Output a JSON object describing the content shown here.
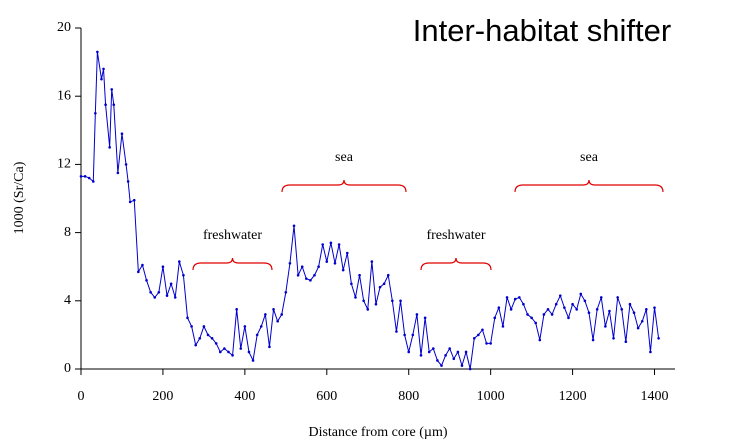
{
  "chart_data": {
    "type": "line",
    "title": "Inter-habitat shifter",
    "xlabel": "Distance from core (µm)",
    "ylabel": "1000 (Sr/Ca)",
    "xlim": [
      0,
      1450
    ],
    "xticks": [
      0,
      200,
      400,
      600,
      800,
      1000,
      1200,
      1400
    ],
    "ylim": [
      0,
      20
    ],
    "yticks": [
      0,
      4,
      8,
      12,
      16,
      20
    ],
    "annotations": [
      "freshwater",
      "sea",
      "freshwater",
      "sea"
    ],
    "series": [
      {
        "color": "#0000cc",
        "x": [
          0,
          10,
          20,
          30,
          35,
          40,
          50,
          55,
          60,
          70,
          75,
          80,
          90,
          100,
          110,
          115,
          120,
          130,
          140,
          150,
          160,
          170,
          180,
          190,
          200,
          210,
          220,
          230,
          240,
          250,
          260,
          270,
          280,
          290,
          300,
          310,
          320,
          330,
          340,
          350,
          360,
          370,
          380,
          390,
          400,
          410,
          420,
          430,
          440,
          450,
          460,
          470,
          480,
          490,
          500,
          510,
          520,
          530,
          540,
          550,
          560,
          570,
          580,
          590,
          600,
          610,
          620,
          630,
          640,
          650,
          660,
          670,
          680,
          690,
          700,
          710,
          720,
          730,
          740,
          750,
          760,
          770,
          780,
          790,
          800,
          810,
          820,
          830,
          840,
          850,
          860,
          870,
          880,
          890,
          900,
          910,
          920,
          930,
          940,
          950,
          960,
          970,
          980,
          990,
          1000,
          1010,
          1020,
          1030,
          1040,
          1050,
          1060,
          1070,
          1080,
          1090,
          1100,
          1110,
          1120,
          1130,
          1140,
          1150,
          1160,
          1170,
          1180,
          1190,
          1200,
          1210,
          1220,
          1230,
          1240,
          1250,
          1260,
          1270,
          1280,
          1290,
          1300,
          1310,
          1320,
          1330,
          1340,
          1350,
          1360,
          1370,
          1380,
          1390,
          1400,
          1410
        ],
        "values": [
          11.3,
          11.3,
          11.2,
          11.0,
          15,
          18.6,
          17,
          17.6,
          15.5,
          13,
          16.4,
          15.5,
          11.5,
          13.8,
          12,
          11,
          9.8,
          9.9,
          5.7,
          6.1,
          5.2,
          4.5,
          4.2,
          4.5,
          6.0,
          4.3,
          5.0,
          4.2,
          6.3,
          5.5,
          3.0,
          2.5,
          1.4,
          1.8,
          2.5,
          2.0,
          1.8,
          1.5,
          1.0,
          1.2,
          1.0,
          0.8,
          3.5,
          1.2,
          2.5,
          1.0,
          0.5,
          2.0,
          2.5,
          3.2,
          1.3,
          3.5,
          2.8,
          3.2,
          4.5,
          6.2,
          8.4,
          5.5,
          6.0,
          5.3,
          5.2,
          5.5,
          6.0,
          7.3,
          6.3,
          7.4,
          6.2,
          7.3,
          5.8,
          6.8,
          5.0,
          4.2,
          5.5,
          4.0,
          3.5,
          6.3,
          3.8,
          4.8,
          5.0,
          5.5,
          4.0,
          2.2,
          4.0,
          2.0,
          1.0,
          2.0,
          3.2,
          0.8,
          3.0,
          1.0,
          1.2,
          0.5,
          0.2,
          0.8,
          1.2,
          0.6,
          1.0,
          0.2,
          1.0,
          0,
          1.8,
          2.0,
          2.3,
          1.5,
          1.5,
          3.0,
          3.6,
          2.5,
          4.2,
          3.5,
          4.1,
          4.2,
          3.8,
          3.2,
          3.0,
          2.7,
          1.7,
          3.2,
          3.5,
          3.2,
          3.8,
          4.3,
          3.6,
          3.0,
          3.8,
          3.5,
          4.4,
          4.0,
          3.3,
          1.7,
          3.5,
          4.2,
          2.5,
          3.4,
          1.8,
          4.2,
          3.5,
          1.6,
          3.8,
          3.3,
          2.4,
          2.8,
          3.5,
          1.0,
          3.6,
          1.8
        ]
      }
    ]
  }
}
